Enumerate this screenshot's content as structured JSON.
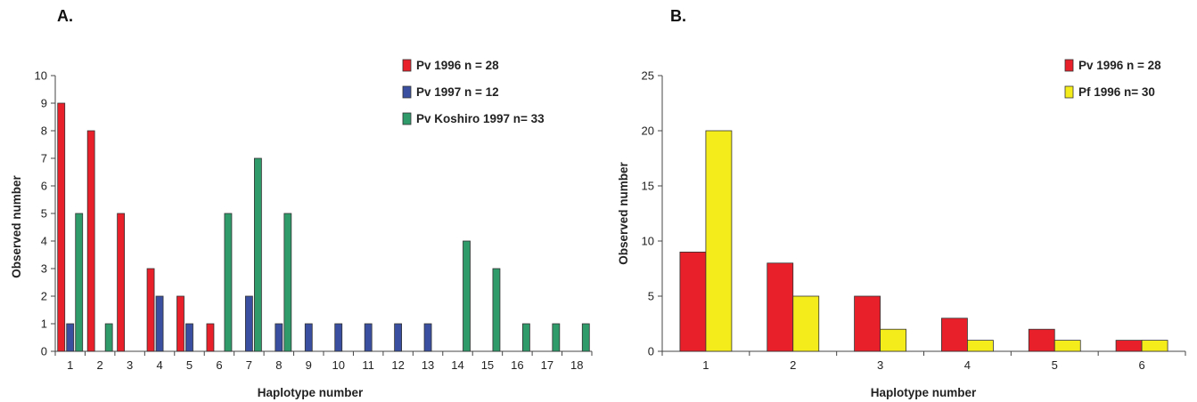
{
  "chart_data": [
    {
      "type": "bar",
      "panel_label": "A.",
      "xlabel": "Haplotype number",
      "ylabel": "Observed number",
      "ylim": [
        0,
        10
      ],
      "yticks": [
        0,
        1,
        2,
        3,
        4,
        5,
        6,
        7,
        8,
        9,
        10
      ],
      "grid": false,
      "legend_position": "top-right",
      "categories": [
        "1",
        "2",
        "3",
        "4",
        "5",
        "6",
        "7",
        "8",
        "9",
        "10",
        "11",
        "12",
        "13",
        "14",
        "15",
        "16",
        "17",
        "18"
      ],
      "series": [
        {
          "name": "Pv 1996 n = 28",
          "color": "#e8202a",
          "values": [
            9,
            8,
            5,
            3,
            2,
            1,
            0,
            0,
            0,
            0,
            0,
            0,
            0,
            0,
            0,
            0,
            0,
            0
          ]
        },
        {
          "name": "Pv 1997 n = 12",
          "color": "#3a4fa0",
          "values": [
            1,
            0,
            0,
            2,
            1,
            0,
            2,
            1,
            1,
            1,
            1,
            1,
            1,
            0,
            0,
            0,
            0,
            0
          ]
        },
        {
          "name": "Pv Koshiro 1997 n= 33",
          "color": "#2f9a6a",
          "values": [
            5,
            1,
            0,
            0,
            0,
            5,
            7,
            5,
            0,
            0,
            0,
            0,
            0,
            4,
            3,
            1,
            1,
            1
          ]
        }
      ]
    },
    {
      "type": "bar",
      "panel_label": "B.",
      "xlabel": "Haplotype number",
      "ylabel": "Observed number",
      "ylim": [
        0,
        25
      ],
      "yticks": [
        0,
        5,
        10,
        15,
        20,
        25
      ],
      "grid": false,
      "legend_position": "top-right",
      "categories": [
        "1",
        "2",
        "3",
        "4",
        "5",
        "6"
      ],
      "series": [
        {
          "name": "Pv 1996 n = 28",
          "color": "#e8202a",
          "values": [
            9,
            8,
            5,
            3,
            2,
            1
          ]
        },
        {
          "name": "Pf 1996 n= 30",
          "color": "#f5ec1c",
          "values": [
            20,
            5,
            2,
            1,
            1,
            1
          ]
        }
      ]
    }
  ]
}
